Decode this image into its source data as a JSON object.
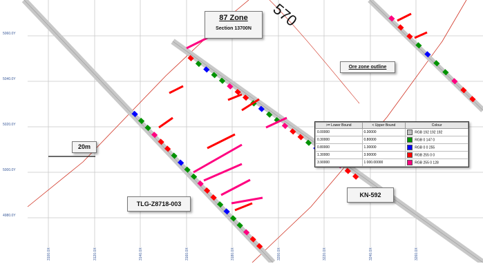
{
  "title_box": {
    "title": "87 Zone",
    "subtitle": "Section 13700N"
  },
  "labels": {
    "ore_zone": "Ore zone outline",
    "scale": "20m",
    "drillhole_1": "TLG-Z8718-003",
    "drillhole_2": "KN-592",
    "contour": "570"
  },
  "axes": {
    "y_ticks": [
      "5060.0Y",
      "5040.0Y",
      "5020.0Y",
      "5000.0Y",
      "4980.0Y"
    ],
    "x_ticks": [
      "3100.0X",
      "3120.0X",
      "3140.0X",
      "3160.0X",
      "3180.0X",
      "3200.0X",
      "3220.0X",
      "3240.0X",
      "3260.0X"
    ]
  },
  "legend": {
    "headers": [
      ">= Lower Bound",
      "< Upper Bound",
      "Colour"
    ],
    "rows": [
      {
        "lower": "0.00000",
        "upper": "0.30000",
        "label": "RGB 192 192 192",
        "color": "#c0c0c0"
      },
      {
        "lower": "0.30000",
        "upper": "0.80000",
        "label": "RGB 0 147 0",
        "color": "#009300"
      },
      {
        "lower": "0.80000",
        "upper": "1.30000",
        "label": "RGB 0 0 255",
        "color": "#0000ff"
      },
      {
        "lower": "1.30000",
        "upper": "3.90000",
        "label": "RGB 255 0 0",
        "color": "#ff0000"
      },
      {
        "lower": "3.90000",
        "upper": "1 000.00000",
        "label": "RGB 255 0 128",
        "color": "#ff0080"
      }
    ]
  }
}
